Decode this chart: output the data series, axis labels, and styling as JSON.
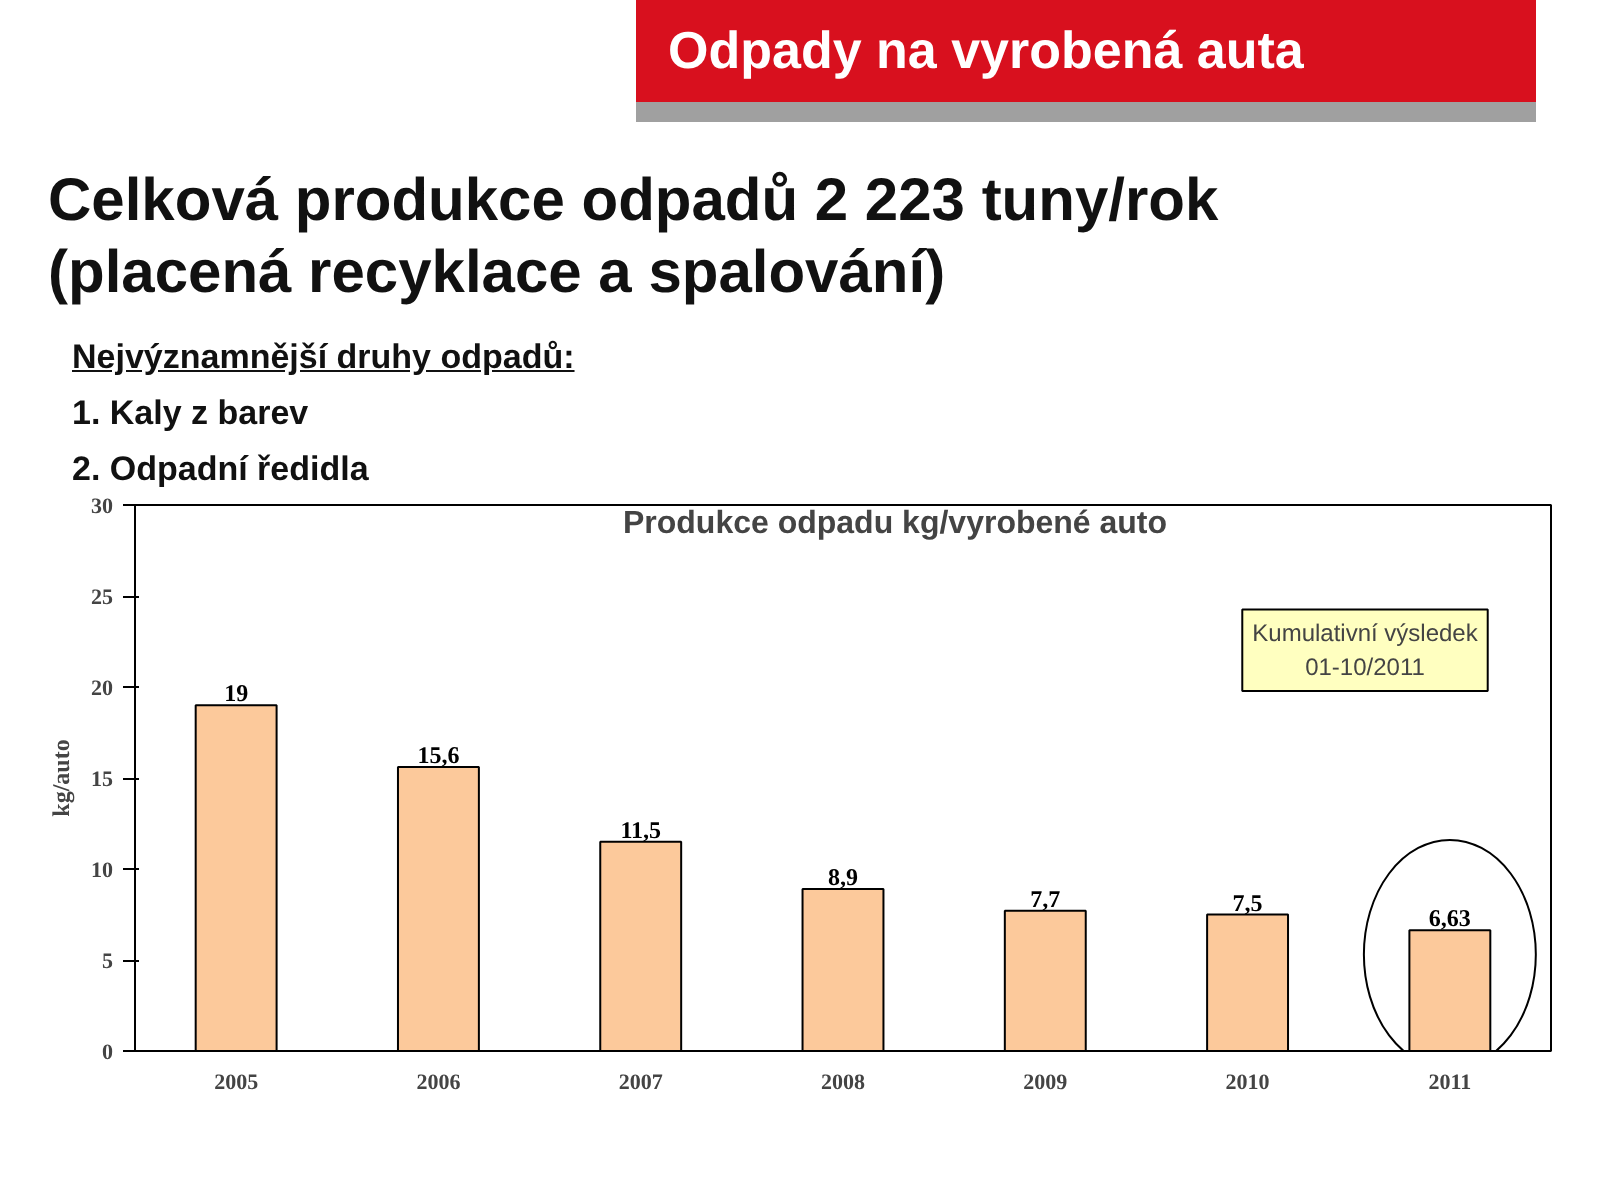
{
  "chart_data": {
    "type": "bar",
    "title": "Produkce odpadu kg/vyrobené auto",
    "annotations": [
      "Odpady na vyrobená auta",
      "Celková produkce odpadů 2 223 tuny/rok (placená recyklace a spalování)",
      "Nejvýznamnější druhy odpadů:",
      "1. Kaly z barev",
      "2. Odpadní ředidla",
      "Kumulativní výsledek\n01-10/2011"
    ],
    "ylabel": "kg/auto",
    "categories": [
      "2005",
      "2006",
      "2007",
      "2008",
      "2009",
      "2010",
      "2011"
    ],
    "values": [
      19,
      15.6,
      11.5,
      8.9,
      7.7,
      7.5,
      6.63
    ],
    "value_labels": [
      "19",
      "15,6",
      "11,5",
      "8,9",
      "7,7",
      "7,5",
      "6,63"
    ],
    "colors": [
      "#fcc99b",
      "#fcc99b",
      "#fcc99b",
      "#fcc99b",
      "#fcc99b",
      "#fcc99b",
      "#fcc99b"
    ],
    "ylim": [
      0,
      30
    ],
    "yticks": [
      0,
      5,
      10,
      15,
      20,
      25,
      30
    ],
    "grid": false
  }
}
